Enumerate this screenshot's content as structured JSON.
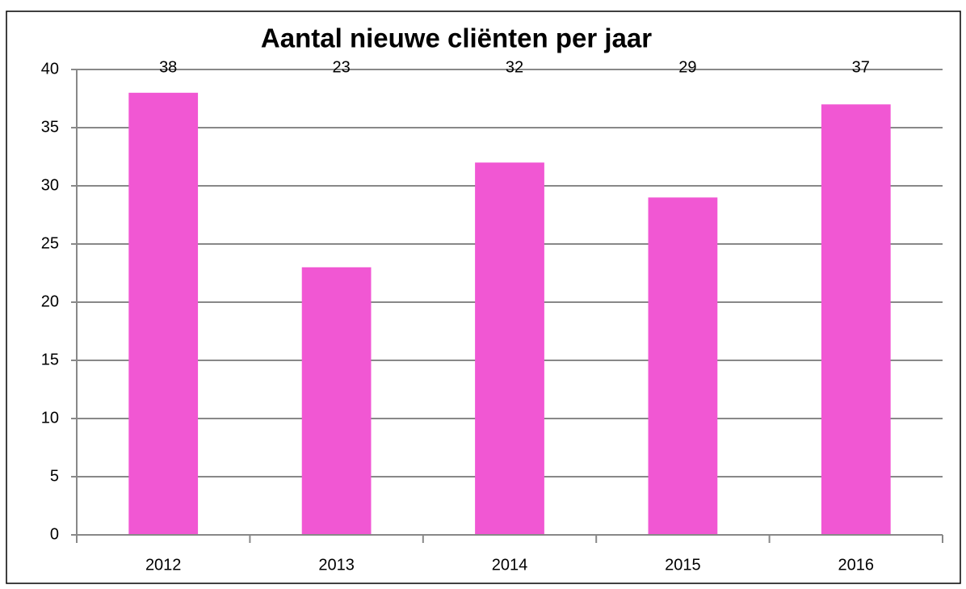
{
  "chart_data": {
    "type": "bar",
    "title": "Aantal nieuwe cliënten per jaar",
    "categories": [
      "2012",
      "2013",
      "2014",
      "2015",
      "2016"
    ],
    "values": [
      38,
      23,
      32,
      29,
      37
    ],
    "color": "#f157d3",
    "ylim": [
      0,
      40
    ],
    "yticks": [
      0,
      5,
      10,
      15,
      20,
      25,
      30,
      35,
      40
    ],
    "grid": true
  }
}
